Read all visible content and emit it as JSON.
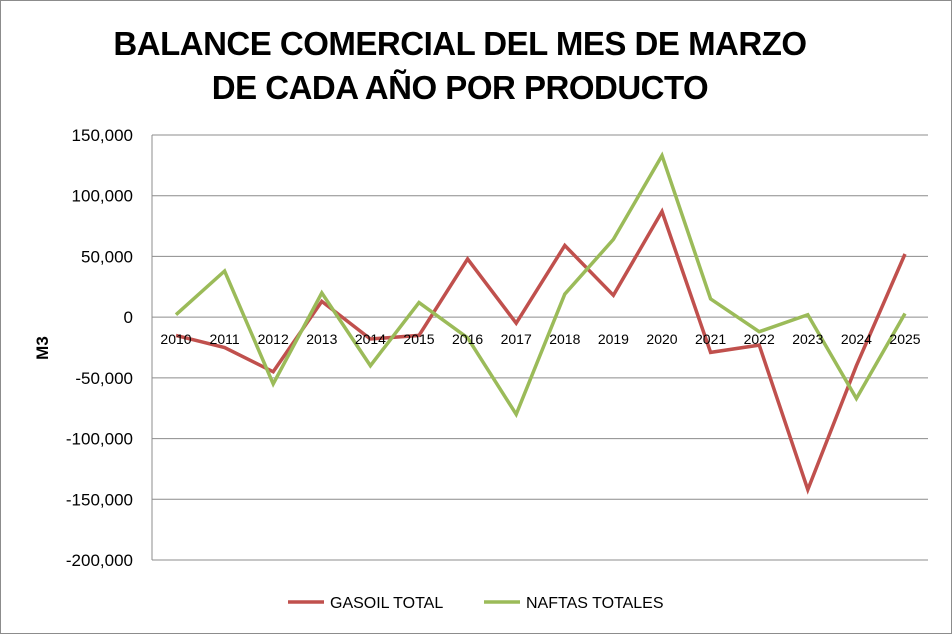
{
  "chart_data": {
    "type": "line",
    "title_line1": "BALANCE COMERCIAL DEL MES DE MARZO",
    "title_line2": "DE CADA AÑO POR PRODUCTO",
    "xlabel": "",
    "ylabel": "M3",
    "ylim": [
      -200000,
      150000
    ],
    "yticks": [
      150000,
      100000,
      50000,
      0,
      -50000,
      -100000,
      -150000,
      -200000
    ],
    "ytick_labels": [
      "150,000",
      "100,000",
      "50,000",
      "0",
      "-50,000",
      "-100,000",
      "-150,000",
      "-200,000"
    ],
    "grid": true,
    "legend_position": "bottom",
    "categories": [
      "2010",
      "2011",
      "2012",
      "2013",
      "2014",
      "2015",
      "2016",
      "2017",
      "2018",
      "2019",
      "2020",
      "2021",
      "2022",
      "2023",
      "2024",
      "2025"
    ],
    "series": [
      {
        "name": "GASOIL TOTAL",
        "color": "#c0504d",
        "values": [
          -15000,
          -25000,
          -45000,
          13000,
          -18000,
          -15000,
          48000,
          -5000,
          59000,
          18000,
          87000,
          -29000,
          -23000,
          -142000,
          -40000,
          52000
        ]
      },
      {
        "name": "NAFTAS TOTALES",
        "color": "#9bbb59",
        "values": [
          2000,
          38000,
          -55000,
          20000,
          -40000,
          12000,
          -17000,
          -80000,
          19000,
          64000,
          133000,
          15000,
          -12000,
          2000,
          -67000,
          3000
        ]
      }
    ]
  }
}
